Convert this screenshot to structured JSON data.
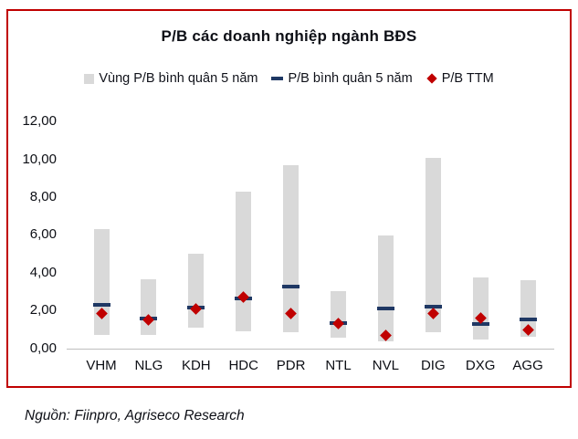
{
  "title": "P/B các doanh nghiệp ngành BĐS",
  "legend": {
    "items": [
      {
        "label": "Vùng P/B bình quân 5 năm",
        "marker": "range-swatch",
        "color": "#D9D9D9"
      },
      {
        "label": "P/B bình quân 5 năm",
        "marker": "dash-swatch",
        "color": "#1F3864"
      },
      {
        "label": "P/B TTM",
        "marker": "diamond-swatch",
        "color": "#C00000"
      }
    ]
  },
  "source_note": "Nguồn: Fiinpro, Agriseco Research",
  "colors": {
    "frame_border": "#C00000",
    "range_bar": "#D9D9D9",
    "avg_dash": "#1F3864",
    "ttm_diamond": "#C00000",
    "axis_line": "#BFBFBF"
  },
  "chart_data": {
    "type": "bar",
    "subtype": "floating-range-bars-with-markers",
    "title": "P/B các doanh nghiệp ngành BĐS",
    "categories": [
      "VHM",
      "NLG",
      "KDH",
      "HDC",
      "PDR",
      "NTL",
      "NVL",
      "DIG",
      "DXG",
      "AGG"
    ],
    "series": [
      {
        "name": "Vùng P/B bình quân 5 năm",
        "type": "range",
        "low": [
          0.7,
          0.7,
          1.1,
          0.9,
          0.85,
          0.55,
          0.35,
          0.85,
          0.45,
          0.6
        ],
        "high": [
          6.3,
          3.65,
          5.0,
          8.3,
          9.7,
          3.0,
          5.95,
          10.05,
          3.75,
          3.6
        ]
      },
      {
        "name": "P/B bình quân 5 năm",
        "type": "dash",
        "values": [
          2.3,
          1.55,
          2.15,
          2.65,
          3.25,
          1.35,
          2.1,
          2.2,
          1.3,
          1.5
        ]
      },
      {
        "name": "P/B TTM",
        "type": "diamond",
        "values": [
          1.85,
          1.5,
          2.1,
          2.7,
          1.85,
          1.3,
          0.7,
          1.85,
          1.6,
          0.95
        ]
      }
    ],
    "xlabel": "",
    "ylabel": "",
    "ylim": [
      0,
      12
    ],
    "ytick_step": 2,
    "ytick_labels": [
      "0,00",
      "2,00",
      "4,00",
      "6,00",
      "8,00",
      "10,00",
      "12,00"
    ],
    "decimal_separator": ",",
    "grid": false,
    "legend_position": "top"
  }
}
